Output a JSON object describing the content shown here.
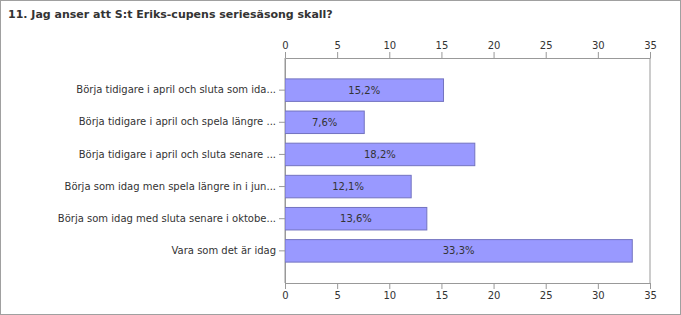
{
  "chart_data": {
    "type": "bar",
    "orientation": "horizontal",
    "title": "11. Jag anser att S:t Eriks-cupens seriesäsong skall?",
    "categories": [
      "Börja tidigare i april och sluta som ida...",
      "Börja tidigare i april och spela längre ...",
      "Börja tidigare i april och sluta senare ...",
      "Börja som idag men spela längre in i jun...",
      "Börja som idag med sluta senare i oktobe...",
      "Vara som det är idag"
    ],
    "values": [
      15.2,
      7.6,
      18.2,
      12.1,
      13.6,
      33.3
    ],
    "value_labels": [
      "15,2%",
      "7,6%",
      "18,2%",
      "12,1%",
      "13,6%",
      "33,3%"
    ],
    "color": "#9999ff",
    "xlim": [
      0,
      35
    ],
    "xticks": [
      0,
      5,
      10,
      15,
      20,
      25,
      30,
      35
    ],
    "grid": false,
    "data_labels": true
  }
}
